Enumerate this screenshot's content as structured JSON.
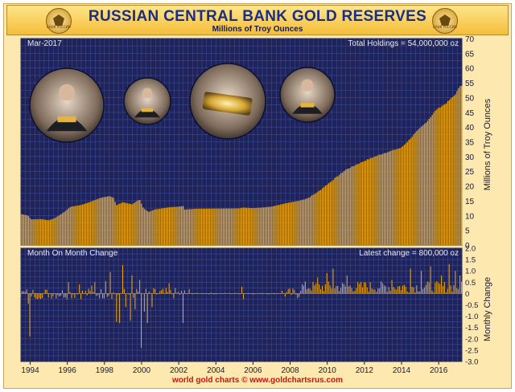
{
  "header": {
    "title": "RUSSIAN CENTRAL BANK GOLD RESERVES",
    "subtitle": "Millions of Troy Ounces",
    "emblem_text": "БАНК РОССИИ",
    "emblem_icon": "double-headed-eagle-icon"
  },
  "upper_panel": {
    "date_label": "Mar-2017",
    "total_label": "Total Holdings = 54,000,000 oz",
    "ylabel": "Millions of Troy Ounces"
  },
  "lower_panel": {
    "title": "Month On Month Change",
    "latest_label": "Latest change = 800,000 oz",
    "ylabel": "Monthly Change"
  },
  "footer": {
    "credit": "world gold charts © www.goldchartsrus.com"
  },
  "photos": [
    {
      "name": "photo-officials-gold-bar-1",
      "icon": "people-photo-icon"
    },
    {
      "name": "photo-putin-gold-bar",
      "icon": "person-photo-icon"
    },
    {
      "name": "photo-leaders-gold-bar",
      "icon": "gold-bar-photo-icon"
    },
    {
      "name": "photo-medvedev",
      "icon": "person-photo-icon"
    }
  ],
  "colors": {
    "panel_bg": "#1f2357",
    "grid": "#3b4a99",
    "bar": "#e8a515",
    "frame": "#fde9b0",
    "title": "#1a2e86",
    "footer": "#d01010"
  },
  "chart_data": [
    {
      "type": "bar",
      "title": "RUSSIAN CENTRAL BANK GOLD RESERVES",
      "subtitle": "Millions of Troy Ounces",
      "ylabel": "Millions of Troy Ounces",
      "frequency": "monthly",
      "x_range": [
        1993.5,
        2017.25
      ],
      "ylim": [
        0,
        70
      ],
      "ticks": [
        "0",
        "5",
        "10",
        "15",
        "20",
        "25",
        "30",
        "35",
        "40",
        "45",
        "50",
        "55",
        "60",
        "65",
        "70"
      ],
      "x_tick_labels": [
        "1994",
        "1996",
        "1998",
        "2000",
        "2002",
        "2004",
        "2006",
        "2008",
        "2010",
        "2012",
        "2014",
        "2016"
      ],
      "x_ticks": [
        1994,
        1996,
        1998,
        2000,
        2002,
        2004,
        2006,
        2008,
        2010,
        2012,
        2014,
        2016
      ],
      "grid": true,
      "anchors": [
        [
          1993.5,
          10.5
        ],
        [
          1993.9,
          10.0
        ],
        [
          1994.05,
          8.7
        ],
        [
          1994.6,
          8.8
        ],
        [
          1995.0,
          8.4
        ],
        [
          1995.3,
          9.0
        ],
        [
          1995.8,
          11.0
        ],
        [
          1996.2,
          13.0
        ],
        [
          1996.7,
          13.5
        ],
        [
          1997.2,
          14.5
        ],
        [
          1997.8,
          16.0
        ],
        [
          1998.3,
          16.6
        ],
        [
          1998.5,
          16.0
        ],
        [
          1998.65,
          13.5
        ],
        [
          1999.0,
          14.5
        ],
        [
          1999.5,
          13.8
        ],
        [
          1999.9,
          15.5
        ],
        [
          2000.1,
          12.5
        ],
        [
          2000.4,
          11.2
        ],
        [
          2000.7,
          12.0
        ],
        [
          2001.5,
          12.8
        ],
        [
          2002.0,
          13.0
        ],
        [
          2002.25,
          13.2
        ],
        [
          2002.3,
          12.0
        ],
        [
          2003.0,
          12.3
        ],
        [
          2005.3,
          12.4
        ],
        [
          2005.45,
          12.7
        ],
        [
          2006.0,
          12.5
        ],
        [
          2006.5,
          12.7
        ],
        [
          2007.0,
          13.0
        ],
        [
          2007.8,
          14.2
        ],
        [
          2008.5,
          15.0
        ],
        [
          2009.0,
          16.0
        ],
        [
          2009.5,
          18.0
        ],
        [
          2010.0,
          20.5
        ],
        [
          2010.5,
          23.0
        ],
        [
          2011.0,
          25.5
        ],
        [
          2011.5,
          27.0
        ],
        [
          2012.0,
          28.5
        ],
        [
          2012.5,
          29.8
        ],
        [
          2013.0,
          31.0
        ],
        [
          2013.5,
          32.0
        ],
        [
          2014.0,
          33.0
        ],
        [
          2014.4,
          35.5
        ],
        [
          2014.9,
          39.0
        ],
        [
          2015.4,
          42.0
        ],
        [
          2015.9,
          46.0
        ],
        [
          2016.4,
          48.0
        ],
        [
          2016.9,
          51.0
        ],
        [
          2017.17,
          54.0
        ]
      ],
      "latest_value": 54.0
    },
    {
      "type": "bar",
      "title": "Month On Month Change",
      "ylabel": "Monthly Change",
      "frequency": "monthly",
      "x_range": [
        1993.5,
        2017.25
      ],
      "ylim": [
        -3.0,
        2.0
      ],
      "ticks": [
        "2.0",
        "1.5",
        "1.0",
        "0.5",
        "0",
        "-0.5",
        "-1.0",
        "-1.5",
        "-2.0",
        "-2.5",
        "-3.0"
      ],
      "grid": true,
      "large_changes": [
        [
          1993.92,
          -0.45
        ],
        [
          1994.0,
          -1.9
        ],
        [
          1994.45,
          -0.25
        ],
        [
          1994.7,
          -0.2
        ],
        [
          1996.1,
          0.5
        ],
        [
          1996.65,
          0.4
        ],
        [
          1997.35,
          0.35
        ],
        [
          1997.5,
          0.5
        ],
        [
          1998.05,
          0.55
        ],
        [
          1998.3,
          0.95
        ],
        [
          1998.7,
          -1.25
        ],
        [
          1998.8,
          -1.3
        ],
        [
          1999.0,
          1.25
        ],
        [
          1999.2,
          -0.6
        ],
        [
          1999.4,
          -1.2
        ],
        [
          1999.5,
          0.8
        ],
        [
          1999.7,
          -0.7
        ],
        [
          1999.9,
          0.6
        ],
        [
          2000.0,
          -2.4
        ],
        [
          2000.15,
          -0.8
        ],
        [
          2000.3,
          -1.3
        ],
        [
          2000.55,
          -0.6
        ],
        [
          2001.5,
          0.45
        ],
        [
          2002.25,
          -1.3
        ],
        [
          2005.45,
          0.3
        ],
        [
          2005.5,
          -0.25
        ],
        [
          2009.5,
          0.7
        ],
        [
          2010.0,
          0.9
        ],
        [
          2010.3,
          1.1
        ],
        [
          2011.1,
          0.8
        ],
        [
          2012.0,
          0.5
        ],
        [
          2013.5,
          0.6
        ],
        [
          2014.5,
          1.1
        ],
        [
          2015.1,
          1.0
        ],
        [
          2015.6,
          1.2
        ],
        [
          2016.2,
          0.8
        ],
        [
          2016.6,
          1.3
        ],
        [
          2016.9,
          1.0
        ],
        [
          2017.17,
          0.8
        ]
      ],
      "latest_change": 0.8
    }
  ]
}
